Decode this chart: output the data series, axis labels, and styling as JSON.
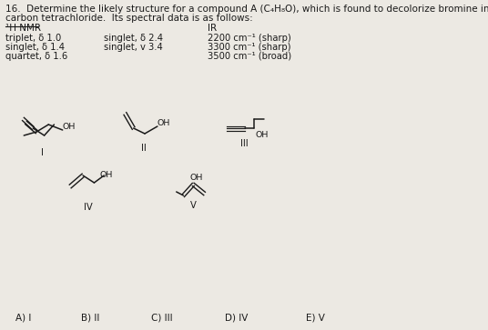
{
  "title_line1": "16.  Determine the likely structure for a compound A (C₄H₈O), which is found to decolorize bromine in",
  "title_line2": "carbon tetrachloride.  Its spectral data is as follows:",
  "hnmr_header": "¹H NMR",
  "ir_header": "IR",
  "hnmr_col1": [
    "triplet, δ 1.0",
    "singlet, δ 1.4",
    "quartet, δ 1.6"
  ],
  "hnmr_col2": [
    "singlet, δ 2.4",
    "singlet, v 3.4",
    ""
  ],
  "ir_col": [
    "2200 cm⁻¹ (sharp)",
    "3300 cm⁻¹ (sharp)",
    "3500 cm⁻¹ (broad)"
  ],
  "answer_choices": [
    "A) I",
    "B) II",
    "C) III",
    "D) IV",
    "E) V"
  ],
  "bg_color": "#ece9e3",
  "text_color": "#1a1a1a",
  "font_size_title": 7.5,
  "font_size_body": 7.2,
  "font_size_header": 7.5,
  "font_size_answer": 7.5,
  "struct_label_fs": 7.2
}
